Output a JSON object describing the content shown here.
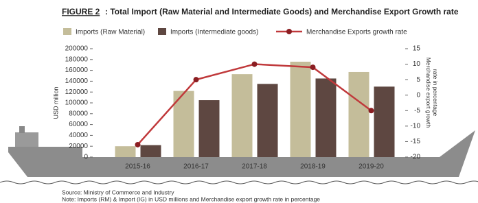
{
  "chart_data": {
    "type": "bar-line",
    "figure_label": "FIGURE 2",
    "title": ": Total Import (Raw Material and Intermediate Goods) and Merchandise Export Growth rate",
    "categories": [
      "2015-16",
      "2016-17",
      "2017-18",
      "2018-19",
      "2019-20"
    ],
    "series": [
      {
        "name": "Imports (Raw Material)",
        "color": "#c4bd9a",
        "values": [
          20000,
          122000,
          153000,
          176000,
          157000
        ]
      },
      {
        "name": "Imports (Intermediate goods)",
        "color": "#5e4741",
        "values": [
          22000,
          105000,
          135000,
          145000,
          130000
        ]
      },
      {
        "name": "Merchandise Exports growth rate",
        "color": "#c0393b",
        "axis": "y2",
        "values": [
          -16,
          5,
          10,
          9,
          -5
        ]
      }
    ],
    "ylabel": "USD million",
    "y2label": [
      "Merchandise export growth",
      "rate in percentage"
    ],
    "ylim": [
      0,
      200000
    ],
    "yticks": [
      0,
      20000,
      40000,
      60000,
      80000,
      100000,
      120000,
      140000,
      160000,
      180000,
      200000
    ],
    "y2lim": [
      -20,
      15
    ],
    "y2ticks": [
      -20,
      -15,
      -10,
      -5,
      0,
      5,
      10,
      15
    ],
    "source": [
      "Source: Ministry of Commerce and Industry",
      "Note: Imports (RM) & Import (IG) in USD millions and Merchandise export growth rate in percentage"
    ]
  }
}
